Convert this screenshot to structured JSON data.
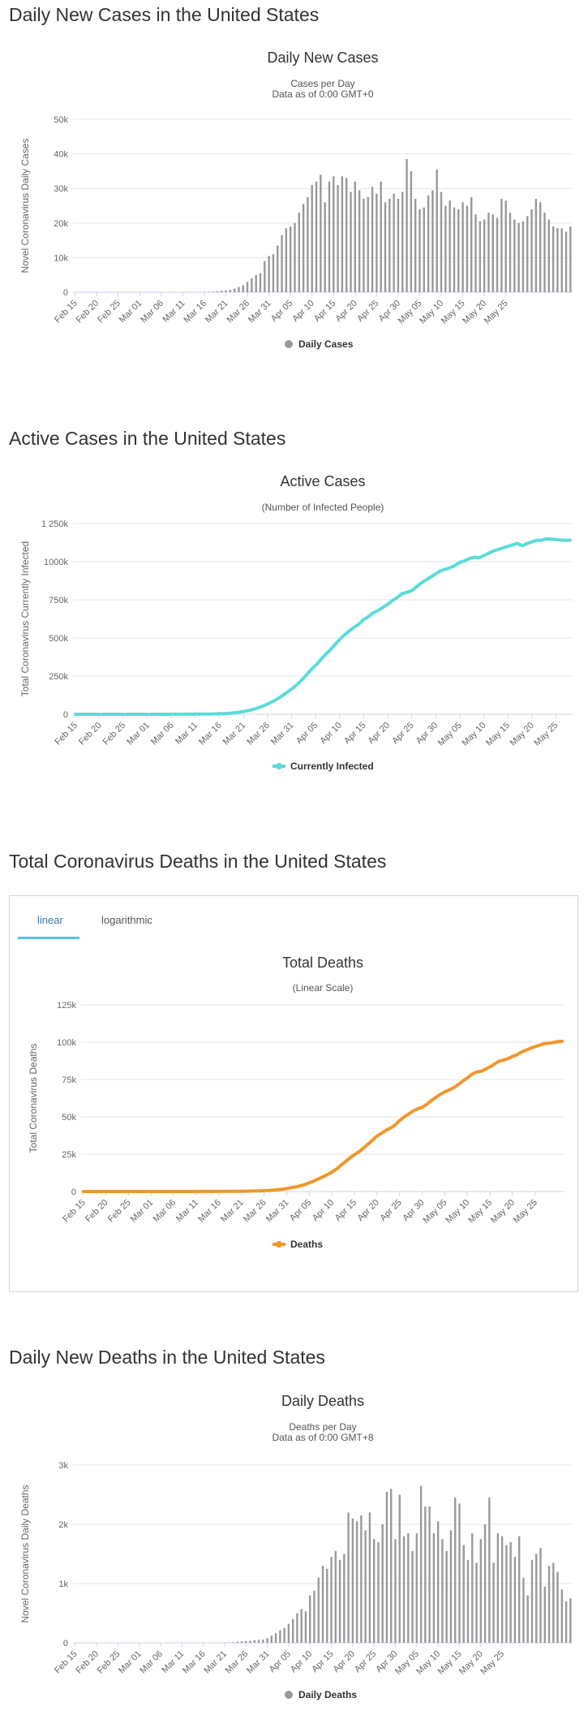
{
  "sections": {
    "daily_cases_title": "Daily New Cases in the United States",
    "active_cases_title": "Active Cases in the United States",
    "total_deaths_title": "Total Coronavirus Deaths in the United States",
    "daily_deaths_title": "Daily New Deaths in the United States"
  },
  "tabs": {
    "linear": "linear",
    "logarithmic": "logarithmic"
  },
  "x_tick_labels": [
    "Feb 15",
    "Feb 20",
    "Feb 25",
    "Mar 01",
    "Mar 06",
    "Mar 11",
    "Mar 16",
    "Mar 21",
    "Mar 26",
    "Mar 31",
    "Apr 05",
    "Apr 10",
    "Apr 15",
    "Apr 20",
    "Apr 25",
    "Apr 30",
    "May 05",
    "May 10",
    "May 15",
    "May 20",
    "May 25"
  ],
  "chart_data": [
    {
      "id": "daily_cases",
      "type": "bar",
      "title": "Daily New Cases",
      "subtitle": [
        "Cases per Day",
        "Data as of 0:00 GMT+0"
      ],
      "ylabel": "Novel Coronavirus Daily Cases",
      "xlabel": "",
      "ylim": [
        0,
        50000
      ],
      "y_ticks": [
        0,
        10000,
        20000,
        30000,
        40000,
        50000
      ],
      "y_tick_labels": [
        "0",
        "10k",
        "20k",
        "30k",
        "40k",
        "50k"
      ],
      "x_start": "Feb 15",
      "legend": [
        "Daily Cases"
      ],
      "color": "#999999",
      "values": [
        0,
        0,
        0,
        0,
        0,
        0,
        0,
        0,
        0,
        0,
        0,
        0,
        0,
        0,
        0,
        0,
        0,
        0,
        0,
        0,
        0,
        0,
        0,
        0,
        0,
        0,
        0,
        20,
        40,
        60,
        80,
        100,
        150,
        250,
        400,
        500,
        700,
        1000,
        1500,
        2000,
        3000,
        4000,
        5000,
        5500,
        9000,
        10500,
        11000,
        13500,
        16500,
        18500,
        19000,
        20000,
        23000,
        25500,
        27500,
        31000,
        32000,
        34000,
        26000,
        32000,
        33500,
        31000,
        33500,
        33000,
        29000,
        32000,
        29500,
        27000,
        27500,
        30500,
        28500,
        32000,
        26000,
        27000,
        28500,
        27000,
        29000,
        38500,
        35000,
        27000,
        24000,
        24500,
        28000,
        29500,
        35500,
        29000,
        25000,
        26500,
        24500,
        24000,
        26000,
        25000,
        27500,
        22500,
        20500,
        21000,
        23000,
        22500,
        21500,
        27000,
        26500,
        23000,
        21000,
        20000,
        20500,
        22000,
        24000,
        27000,
        26000,
        23000,
        21000,
        19000,
        18500,
        18500,
        17500,
        19000
      ]
    },
    {
      "id": "active_cases",
      "type": "line",
      "title": "Active Cases",
      "subtitle": [
        "(Number of Infected People)"
      ],
      "ylabel": "Total Coronavirus Currently Infected",
      "xlabel": "",
      "ylim": [
        0,
        1250000
      ],
      "y_ticks": [
        0,
        250000,
        500000,
        750000,
        1000000,
        1250000
      ],
      "y_tick_labels": [
        "0",
        "250k",
        "500k",
        "750k",
        "1000k",
        "1 250k"
      ],
      "x_start": "Feb 15",
      "legend": [
        "Currently Infected"
      ],
      "color": "#5cdbd9",
      "values": [
        12,
        12,
        12,
        12,
        12,
        12,
        12,
        12,
        13,
        13,
        14,
        15,
        16,
        20,
        30,
        40,
        60,
        80,
        100,
        200,
        300,
        400,
        500,
        600,
        700,
        800,
        1000,
        1300,
        1700,
        2500,
        3500,
        4500,
        6000,
        9000,
        13000,
        18000,
        24000,
        32000,
        42000,
        53000,
        67000,
        82000,
        100000,
        120000,
        142000,
        165000,
        190000,
        220000,
        255000,
        290000,
        320000,
        355000,
        390000,
        420000,
        455000,
        490000,
        520000,
        545000,
        570000,
        590000,
        620000,
        640000,
        665000,
        680000,
        700000,
        720000,
        745000,
        765000,
        790000,
        800000,
        810000,
        835000,
        860000,
        880000,
        900000,
        920000,
        940000,
        950000,
        960000,
        975000,
        995000,
        1005000,
        1020000,
        1030000,
        1025000,
        1040000,
        1055000,
        1070000,
        1080000,
        1090000,
        1100000,
        1110000,
        1120000,
        1105000,
        1118000,
        1130000,
        1140000,
        1140000,
        1150000,
        1148000,
        1145000,
        1142000,
        1140000,
        1141000
      ]
    },
    {
      "id": "total_deaths",
      "type": "line",
      "title": "Total Deaths",
      "subtitle": [
        "(Linear Scale)"
      ],
      "ylabel": "Total Coronavirus Deaths",
      "xlabel": "",
      "ylim": [
        0,
        125000
      ],
      "y_ticks": [
        0,
        25000,
        50000,
        75000,
        100000,
        125000
      ],
      "y_tick_labels": [
        "0",
        "25k",
        "50k",
        "75k",
        "100k",
        "125k"
      ],
      "x_start": "Feb 15",
      "legend": [
        "Deaths"
      ],
      "color": "#f0972a",
      "values": [
        0,
        0,
        0,
        0,
        0,
        0,
        0,
        0,
        0,
        0,
        0,
        0,
        0,
        0,
        1,
        1,
        2,
        6,
        9,
        11,
        12,
        15,
        19,
        22,
        26,
        31,
        37,
        41,
        48,
        60,
        70,
        85,
        100,
        130,
        160,
        200,
        240,
        300,
        360,
        450,
        580,
        730,
        940,
        1200,
        1500,
        2000,
        2600,
        3100,
        3800,
        4700,
        5800,
        7000,
        8500,
        9800,
        11300,
        13000,
        15000,
        17500,
        20000,
        22500,
        24600,
        26600,
        29000,
        31700,
        34400,
        37100,
        39000,
        41000,
        42500,
        44500,
        47500,
        49900,
        51900,
        53900,
        55400,
        56300,
        58300,
        60800,
        63000,
        65000,
        66700,
        68100,
        69500,
        71600,
        74000,
        76000,
        78500,
        80000,
        80500,
        81900,
        83500,
        85300,
        87300,
        88000,
        89000,
        90500,
        91600,
        93400,
        94700,
        96000,
        97000,
        98000,
        99000,
        99300,
        99800,
        100400,
        100600
      ]
    },
    {
      "id": "daily_deaths",
      "type": "bar",
      "title": "Daily Deaths",
      "subtitle": [
        "Deaths per Day",
        "Data as of 0:00 GMT+8"
      ],
      "ylabel": "Novel Coronavirus Daily Deaths",
      "xlabel": "",
      "ylim": [
        0,
        3000
      ],
      "y_ticks": [
        0,
        1000,
        2000,
        3000
      ],
      "y_tick_labels": [
        "0",
        "1k",
        "2k",
        "3k"
      ],
      "x_start": "Feb 15",
      "legend": [
        "Daily Deaths"
      ],
      "color": "#999999",
      "values": [
        0,
        0,
        0,
        0,
        0,
        0,
        0,
        0,
        0,
        0,
        0,
        0,
        0,
        0,
        0,
        0,
        0,
        0,
        0,
        0,
        0,
        0,
        0,
        0,
        0,
        0,
        0,
        0,
        0,
        0,
        0,
        0,
        0,
        0,
        0,
        4,
        5,
        10,
        20,
        25,
        30,
        35,
        45,
        50,
        55,
        80,
        120,
        160,
        210,
        250,
        320,
        400,
        500,
        570,
        530,
        800,
        880,
        1100,
        1300,
        1250,
        1450,
        1550,
        1400,
        1500,
        2200,
        2100,
        2050,
        2150,
        1900,
        2200,
        1750,
        1700,
        2000,
        2550,
        2600,
        1750,
        2500,
        1800,
        1850,
        1550,
        1850,
        2650,
        2300,
        2300,
        1850,
        2050,
        1750,
        1550,
        1900,
        2450,
        2350,
        1650,
        1400,
        1850,
        1350,
        1750,
        2000,
        2450,
        1350,
        1850,
        1800,
        1650,
        1700,
        1450,
        1800,
        1100,
        800,
        1400,
        1500,
        1600,
        950,
        1300,
        1350,
        1200,
        900,
        700,
        750
      ]
    }
  ]
}
